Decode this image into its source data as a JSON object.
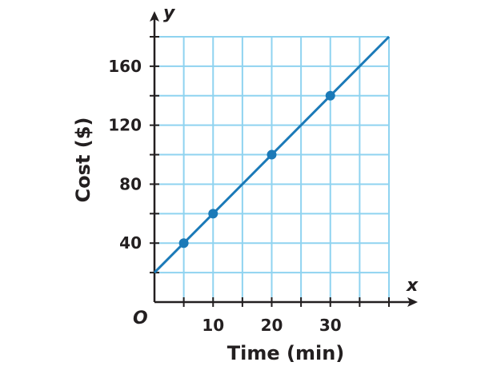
{
  "chart_data": {
    "type": "line",
    "title": "",
    "xlabel": "Time (min)",
    "ylabel": "Cost ($)",
    "x_axis_letter": "x",
    "y_axis_letter": "y",
    "origin_label": "O",
    "xlim": [
      0,
      40
    ],
    "ylim": [
      0,
      180
    ],
    "x_ticks": [
      10,
      20,
      30
    ],
    "y_ticks": [
      40,
      80,
      120,
      160
    ],
    "grid": true,
    "grid_x_step": 5,
    "grid_y_step": 20,
    "series": [
      {
        "line": {
          "slope": 4,
          "intercept": 20,
          "x_range": [
            0,
            40
          ]
        },
        "points": [
          {
            "x": 5,
            "y": 40
          },
          {
            "x": 10,
            "y": 60
          },
          {
            "x": 20,
            "y": 100
          },
          {
            "x": 30,
            "y": 140
          }
        ]
      }
    ],
    "colors": {
      "grid": "#8fd3f0",
      "line": "#1b7ab8",
      "point": "#1b7ab8",
      "axis": "#231f20"
    }
  }
}
